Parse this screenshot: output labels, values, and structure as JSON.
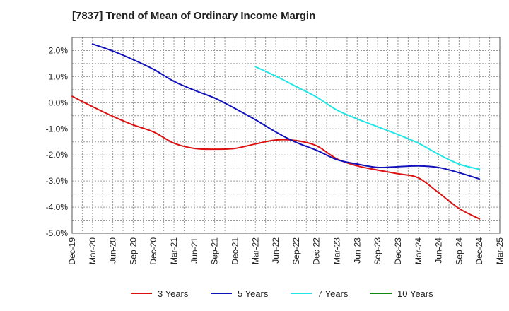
{
  "chart_data": {
    "type": "line",
    "title": "[7837]  Trend of Mean of Ordinary Income Margin",
    "xlabel": "",
    "ylabel": "",
    "x": [
      "Dec-19",
      "Mar-20",
      "Jun-20",
      "Sep-20",
      "Dec-20",
      "Mar-21",
      "Jun-21",
      "Sep-21",
      "Dec-21",
      "Mar-22",
      "Jun-22",
      "Sep-22",
      "Dec-22",
      "Mar-23",
      "Jun-23",
      "Sep-23",
      "Dec-23",
      "Mar-24",
      "Jun-24",
      "Sep-24",
      "Dec-24",
      "Mar-25"
    ],
    "x_ticks": [
      "Dec-19",
      "Mar-20",
      "Jun-20",
      "Sep-20",
      "Dec-20",
      "Mar-21",
      "Jun-21",
      "Sep-21",
      "Dec-21",
      "Mar-22",
      "Jun-22",
      "Sep-22",
      "Dec-22",
      "Mar-23",
      "Jun-23",
      "Sep-23",
      "Dec-23",
      "Mar-24",
      "Jun-24",
      "Sep-24",
      "Dec-24",
      "Mar-25"
    ],
    "y_ticks": [
      2.0,
      1.0,
      0.0,
      -1.0,
      -2.0,
      -3.0,
      -4.0,
      -5.0
    ],
    "y_tick_labels": [
      "2.0%",
      "1.0%",
      "0.0%",
      "-1.0%",
      "-2.0%",
      "-3.0%",
      "-4.0%",
      "-5.0%"
    ],
    "ylim": [
      -5.0,
      2.5
    ],
    "grid": true,
    "legend_position": "bottom",
    "series": [
      {
        "name": "3 Years",
        "color": "#dd1111",
        "values": [
          0.25,
          -0.15,
          -0.52,
          -0.85,
          -1.12,
          -1.55,
          -1.75,
          -1.78,
          -1.75,
          -1.58,
          -1.43,
          -1.45,
          -1.65,
          -2.15,
          -2.42,
          -2.58,
          -2.72,
          -2.88,
          -3.45,
          -4.05,
          -4.45,
          null
        ]
      },
      {
        "name": "5 Years",
        "color": "#1111bb",
        "values": [
          null,
          2.25,
          1.98,
          1.65,
          1.28,
          0.82,
          0.48,
          0.18,
          -0.22,
          -0.65,
          -1.12,
          -1.52,
          -1.82,
          -2.18,
          -2.35,
          -2.48,
          -2.45,
          -2.42,
          -2.48,
          -2.68,
          -2.92,
          null
        ]
      },
      {
        "name": "7 Years",
        "color": "#22e5e5",
        "values": [
          null,
          null,
          null,
          null,
          null,
          null,
          null,
          null,
          null,
          1.38,
          1.02,
          0.62,
          0.22,
          -0.28,
          -0.62,
          -0.92,
          -1.22,
          -1.55,
          -1.98,
          -2.35,
          -2.55,
          null
        ]
      },
      {
        "name": "10 Years",
        "color": "#118811",
        "values": [
          null,
          null,
          null,
          null,
          null,
          null,
          null,
          null,
          null,
          null,
          null,
          null,
          null,
          null,
          null,
          null,
          null,
          null,
          null,
          null,
          null,
          null
        ]
      }
    ]
  }
}
